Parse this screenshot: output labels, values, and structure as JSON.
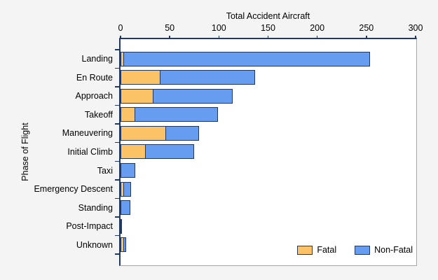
{
  "chart_data": {
    "type": "bar",
    "orientation": "horizontal",
    "stacked": true,
    "title": "Total Accident Aircraft",
    "xlabel": "Total Accident Aircraft",
    "ylabel": "Phase of Flight",
    "xlim": [
      0,
      300
    ],
    "x_ticks": [
      0,
      50,
      100,
      150,
      200,
      250,
      300
    ],
    "grid": false,
    "legend_position": "bottom-right-inside",
    "categories": [
      "Landing",
      "En Route",
      "Approach",
      "Takeoff",
      "Maneuvering",
      "Initial Climb",
      "Taxi",
      "Emergency Descent",
      "Standing",
      "Post-Impact",
      "Unknown"
    ],
    "series": [
      {
        "name": "Fatal",
        "color": "#FBC266",
        "values": [
          4,
          41,
          34,
          15,
          47,
          26,
          0,
          4,
          0,
          0,
          4
        ]
      },
      {
        "name": "Non-Fatal",
        "color": "#669DF1",
        "values": [
          251,
          97,
          81,
          85,
          34,
          50,
          15,
          8,
          10,
          1,
          3
        ]
      }
    ],
    "totals": [
      255,
      138,
      115,
      100,
      81,
      76,
      15,
      12,
      10,
      1,
      7
    ]
  },
  "colors": {
    "background": "#F4F4F4",
    "plot_background": "#FFFFFF",
    "axis": "#1F3864",
    "plot_border_gray": "#A6A6A6",
    "fatal": "#FBC266",
    "non_fatal": "#669DF1",
    "text": "#000000"
  }
}
